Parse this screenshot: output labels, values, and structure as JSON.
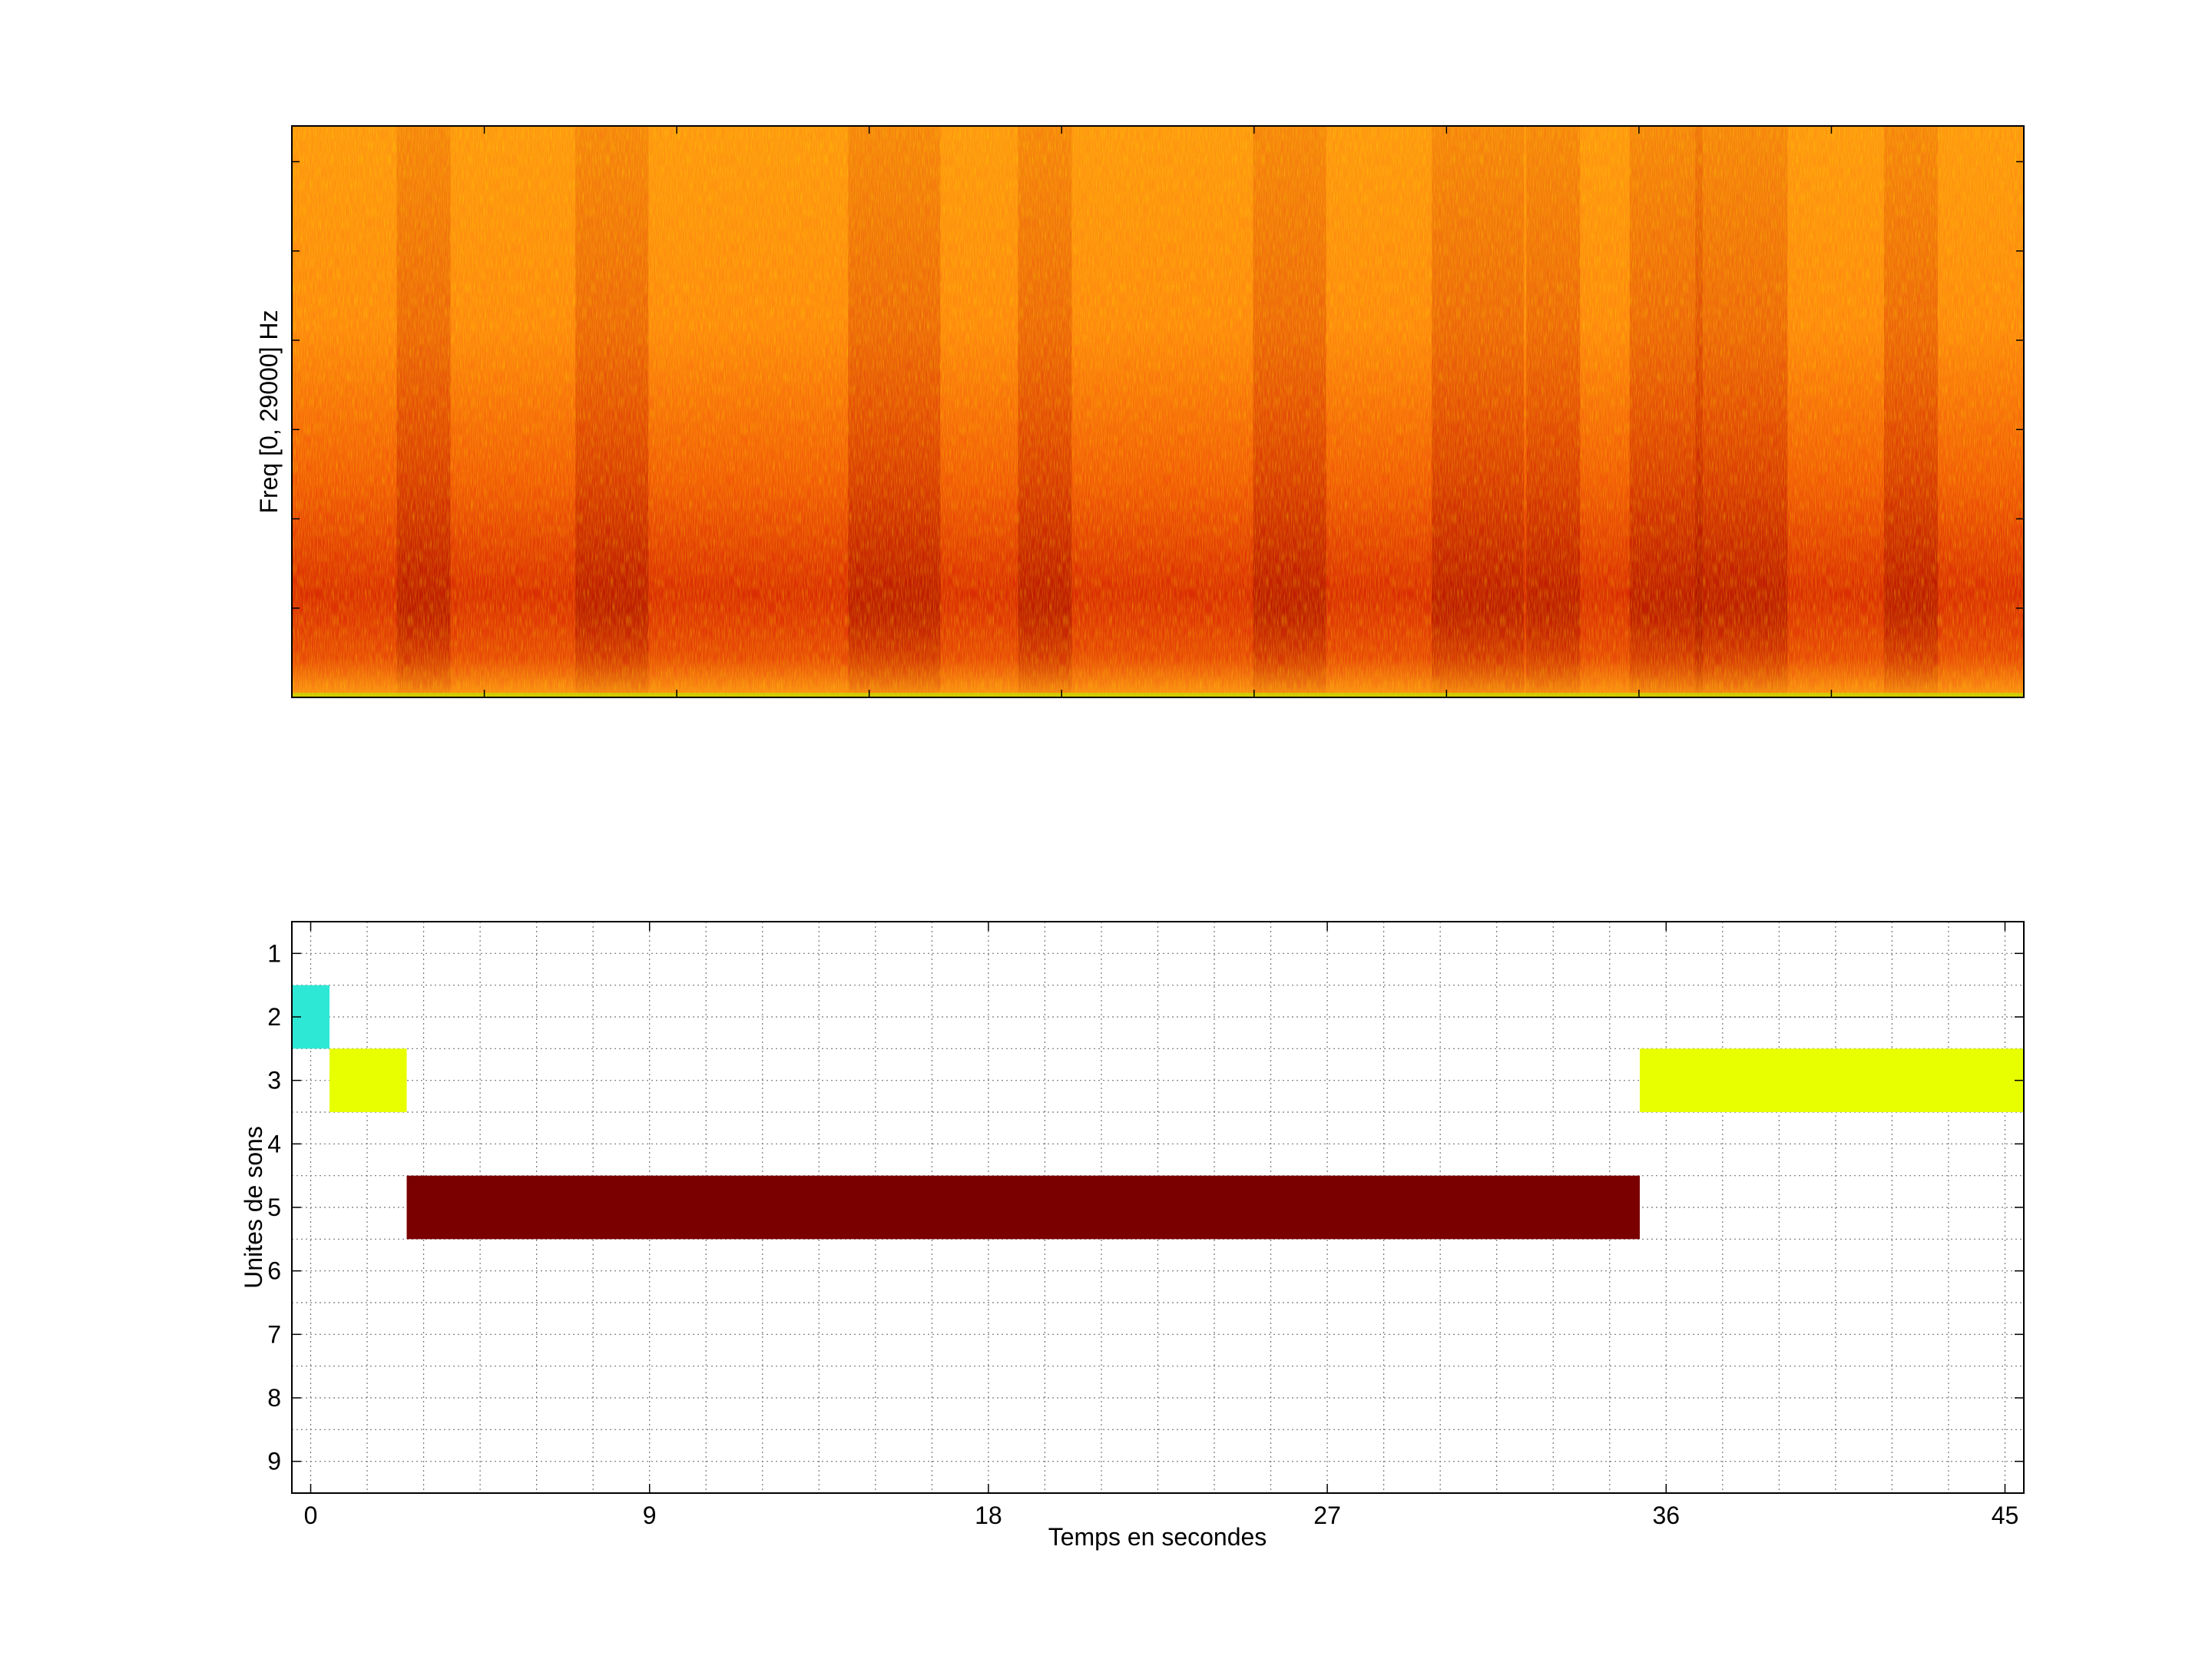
{
  "chart_data": [
    {
      "type": "heatmap",
      "title": "",
      "ylabel": "Freq [0, 29000] Hz",
      "xlabel": "",
      "colormap": "hot",
      "xlim": [
        -0.5,
        45.5
      ],
      "ylim": [
        0,
        29000
      ],
      "grid": false,
      "hot_bands_seconds": [
        3,
        8,
        15.5,
        19.5,
        26,
        31,
        33,
        36,
        38,
        42.5
      ]
    },
    {
      "type": "bar",
      "xlabel": "Temps en secondes",
      "ylabel": "Unites de sons",
      "x_ticks": [
        0,
        9,
        18,
        27,
        36,
        45
      ],
      "y_ticks": [
        1,
        2,
        3,
        4,
        5,
        6,
        7,
        8,
        9
      ],
      "xlim": [
        -0.5,
        45.5
      ],
      "ylim": [
        0.5,
        9.5
      ],
      "y_reversed": true,
      "grid": true,
      "segments": [
        {
          "unit": 2,
          "start": -0.5,
          "end": 0.5,
          "color": "#2ee8d6"
        },
        {
          "unit": 3,
          "start": 0.5,
          "end": 2.55,
          "color": "#e8ff00"
        },
        {
          "unit": 5,
          "start": 2.55,
          "end": 35.3,
          "color": "#7a0000"
        },
        {
          "unit": 3,
          "start": 35.3,
          "end": 45.5,
          "color": "#e8ff00"
        }
      ]
    }
  ]
}
